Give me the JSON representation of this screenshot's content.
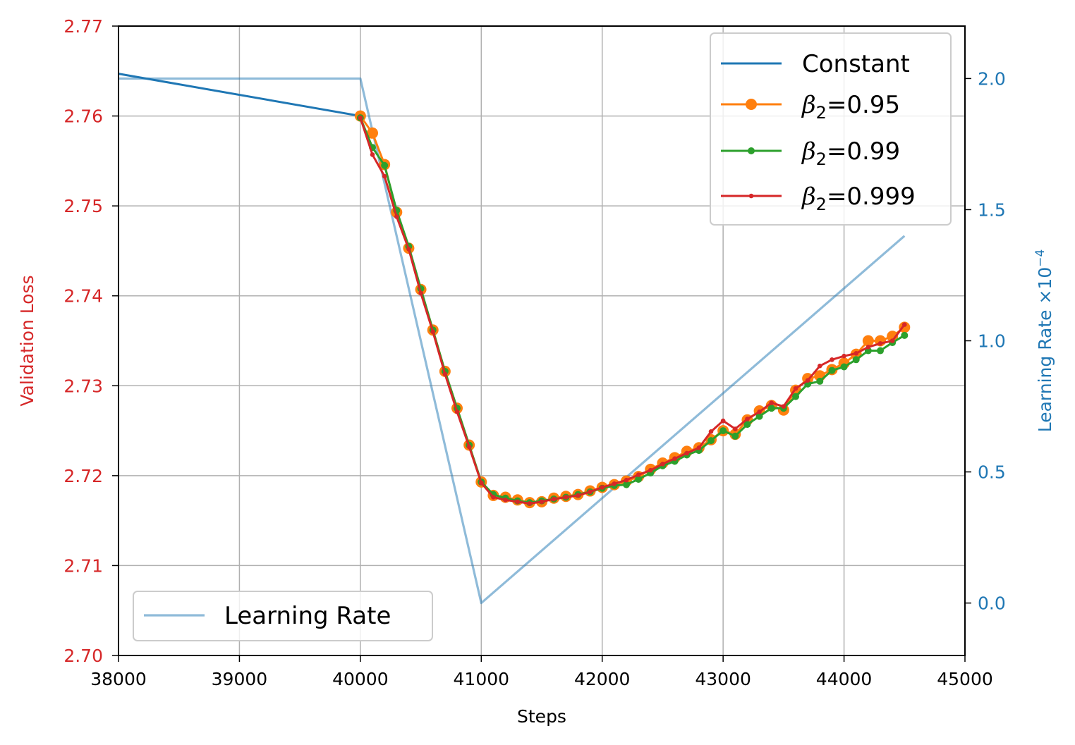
{
  "chart_data": {
    "type": "line",
    "xlabel": "Steps",
    "ylabel_left": "Validation Loss",
    "ylabel_right": "Learning Rate ×10",
    "ylabel_right_exponent": "−4",
    "xlim": [
      38000,
      45000
    ],
    "ylim_left": [
      2.7,
      2.77
    ],
    "ylim_right": [
      -0.2,
      2.2
    ],
    "x_ticks": [
      "38000",
      "39000",
      "40000",
      "41000",
      "42000",
      "43000",
      "44000",
      "45000"
    ],
    "y_ticks_left": [
      "2.70",
      "2.71",
      "2.72",
      "2.73",
      "2.74",
      "2.75",
      "2.76",
      "2.77"
    ],
    "y_ticks_right": [
      "0.0",
      "0.5",
      "1.0",
      "1.5",
      "2.0"
    ],
    "grid": true,
    "colors": {
      "left_axis": "#d62728",
      "right_axis": "#1f77b4",
      "grid": "#b0b0b0"
    },
    "legend_main": {
      "placement": "top-right",
      "entries": [
        {
          "label": "Constant",
          "color": "#1f77b4",
          "marker": "none"
        },
        {
          "label_prefix": "β",
          "label_sub": "2",
          "label_suffix": "=0.95",
          "color": "#ff7f0e",
          "marker": "large-dot"
        },
        {
          "label_prefix": "β",
          "label_sub": "2",
          "label_suffix": "=0.99",
          "color": "#2ca02c",
          "marker": "dot"
        },
        {
          "label_prefix": "β",
          "label_sub": "2",
          "label_suffix": "=0.999",
          "color": "#d62728",
          "marker": "small-dot"
        }
      ]
    },
    "legend_lr": {
      "placement": "bottom-left",
      "label": "Learning Rate",
      "color": "#1f77b4"
    },
    "x": [
      40000,
      40100,
      40200,
      40300,
      40400,
      40500,
      40600,
      40700,
      40800,
      40900,
      41000,
      41100,
      41200,
      41300,
      41400,
      41500,
      41600,
      41700,
      41800,
      41900,
      42000,
      42100,
      42200,
      42300,
      42400,
      42500,
      42600,
      42700,
      42800,
      42900,
      43000,
      43100,
      43200,
      43300,
      43400,
      43500,
      43600,
      43700,
      43800,
      43900,
      44000,
      44100,
      44200,
      44300,
      44400,
      44500
    ],
    "series": [
      {
        "name": "Constant",
        "color": "#1f77b4",
        "axis": "left",
        "x": [
          38000,
          40000
        ],
        "values": [
          2.7647,
          2.76
        ]
      },
      {
        "name": "β2=0.95",
        "color": "#ff7f0e",
        "axis": "left",
        "values": [
          2.76,
          2.7581,
          2.7546,
          2.7493,
          2.7453,
          2.7407,
          2.7362,
          2.7316,
          2.7275,
          2.7234,
          2.7193,
          2.7178,
          2.7176,
          2.7173,
          2.717,
          2.7171,
          2.7175,
          2.7177,
          2.7179,
          2.7183,
          2.7187,
          2.719,
          2.7194,
          2.7199,
          2.7207,
          2.7214,
          2.722,
          2.7227,
          2.7231,
          2.724,
          2.725,
          2.7246,
          2.7262,
          2.7272,
          2.7278,
          2.7273,
          2.7295,
          2.7308,
          2.7311,
          2.7318,
          2.7325,
          2.7335,
          2.735,
          2.735,
          2.7355,
          2.7365
        ]
      },
      {
        "name": "β2=0.99",
        "color": "#2ca02c",
        "axis": "left",
        "values": [
          2.7598,
          2.7565,
          2.7545,
          2.7495,
          2.7455,
          2.7408,
          2.7362,
          2.7316,
          2.7275,
          2.7234,
          2.7193,
          2.7179,
          2.7175,
          2.7172,
          2.717,
          2.7172,
          2.7174,
          2.7176,
          2.7179,
          2.7182,
          2.7186,
          2.7189,
          2.719,
          2.7196,
          2.7203,
          2.7211,
          2.7216,
          2.7223,
          2.7228,
          2.7239,
          2.725,
          2.7244,
          2.7257,
          2.7266,
          2.7275,
          2.7275,
          2.7288,
          2.7302,
          2.7305,
          2.7317,
          2.7321,
          2.7329,
          2.7339,
          2.7339,
          2.7348,
          2.7356
        ]
      },
      {
        "name": "β2=0.999",
        "color": "#d62728",
        "axis": "left",
        "values": [
          2.7598,
          2.7557,
          2.7533,
          2.7488,
          2.7452,
          2.7403,
          2.736,
          2.7313,
          2.7271,
          2.7232,
          2.7192,
          2.7176,
          2.7173,
          2.7171,
          2.7169,
          2.7171,
          2.7174,
          2.7176,
          2.7178,
          2.7182,
          2.7187,
          2.7191,
          2.7195,
          2.7201,
          2.7206,
          2.7213,
          2.7219,
          2.7225,
          2.7231,
          2.7249,
          2.7261,
          2.7252,
          2.7263,
          2.7271,
          2.7281,
          2.7277,
          2.7297,
          2.7306,
          2.7322,
          2.7329,
          2.7333,
          2.7336,
          2.7343,
          2.7347,
          2.735,
          2.7368
        ]
      },
      {
        "name": "Learning Rate",
        "color": "#1f77b4",
        "axis": "right",
        "x": [
          38000,
          40000,
          41000,
          44500
        ],
        "values": [
          2.0,
          2.0,
          0.0,
          1.4
        ]
      }
    ]
  }
}
